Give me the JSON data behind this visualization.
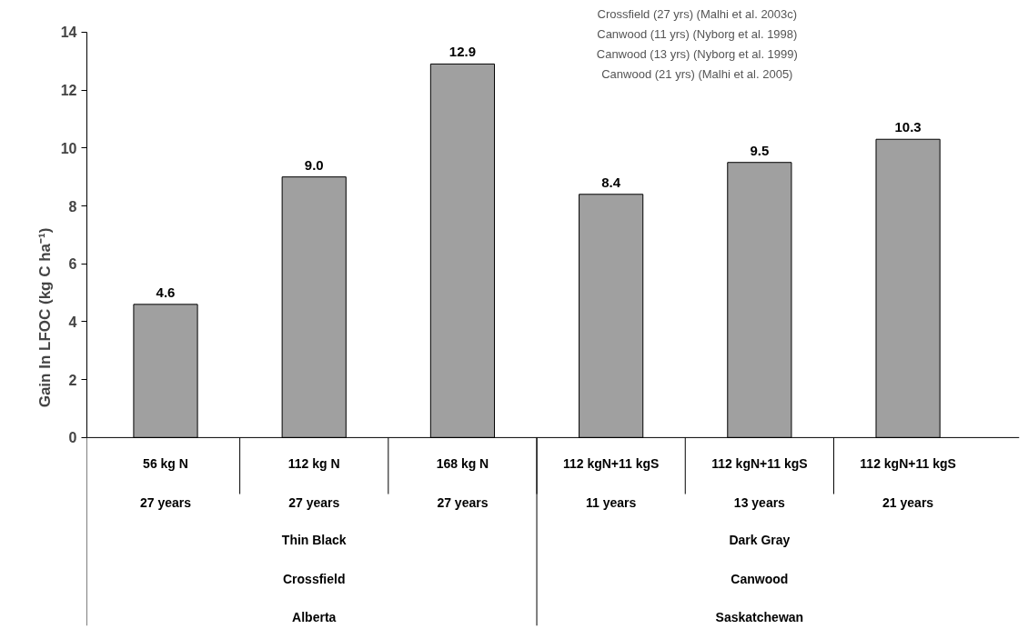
{
  "chart_data": {
    "type": "bar",
    "ylabel": "Gain In LFOC (kg C ha⁻¹)",
    "categories": [
      "56 kg N\n27 years",
      "112 kg N\n27 years",
      "168 kg N\n27 years",
      "112 kgN+11 kgS\n11 years",
      "112 kgN+11 kgS\n13 years",
      "112 kgN+11 kgS\n21 years"
    ],
    "values": [
      4.6,
      9.0,
      12.9,
      8.4,
      9.5,
      10.3
    ],
    "value_labels": [
      "4.6",
      "9.0",
      "12.9",
      "8.4",
      "9.5",
      "10.3"
    ],
    "color": "#a0a0a0",
    "ylim": [
      0,
      14
    ],
    "yticks": [
      0,
      2,
      4,
      6,
      8,
      10,
      12,
      14
    ],
    "grid": false,
    "annotations": [
      "Crossfield (27 yrs) (Malhi et al. 2003c)",
      "Canwood (11 yrs) (Nyborg et al. 1998)",
      "Canwood (13 yrs) (Nyborg et al. 1999)",
      "Canwood (21 yrs) (Malhi et al. 2005)",
      "Thin Black\nCrossfield\nAlberta",
      "Dark Gray\nCanwood\nSaskatchewan"
    ]
  }
}
